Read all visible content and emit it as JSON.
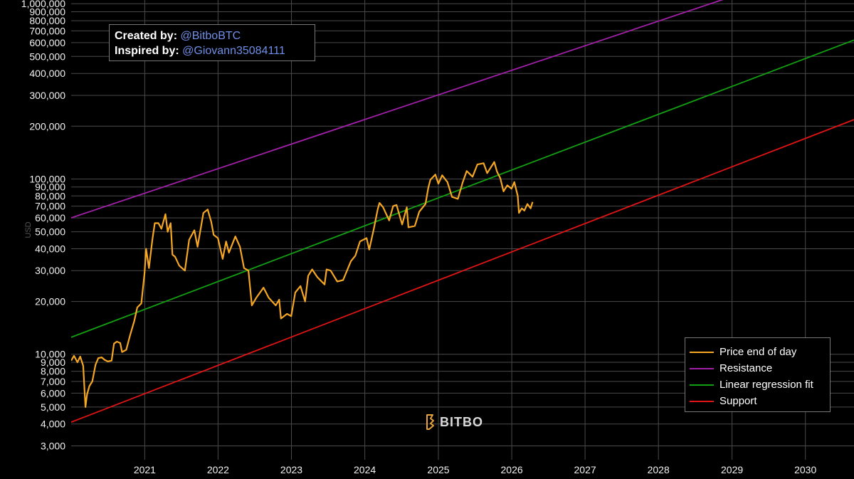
{
  "credits": {
    "created_label": "Created by:",
    "created_handle": "@BitboBTC",
    "inspired_label": "Inspired by:",
    "inspired_handle": "@Giovann35084111"
  },
  "watermark": {
    "text": "BITBO",
    "icon": "bitbo-logo-icon"
  },
  "chart_data": {
    "type": "line",
    "ylabel": "USD",
    "yscale": "log",
    "ylim": [
      2500,
      1050000
    ],
    "xlim": [
      "2020-01-01",
      "2030-08-31"
    ],
    "grid": true,
    "legend_position": "bottom-right",
    "x_ticks": [
      "2021",
      "2022",
      "2023",
      "2024",
      "2025",
      "2026",
      "2027",
      "2028",
      "2029",
      "2030"
    ],
    "y_ticks": [
      {
        "value": 3000,
        "label": "3,000"
      },
      {
        "value": 4000,
        "label": "4,000"
      },
      {
        "value": 5000,
        "label": "5,000"
      },
      {
        "value": 6000,
        "label": "6,000"
      },
      {
        "value": 7000,
        "label": "7,000"
      },
      {
        "value": 8000,
        "label": "8,000"
      },
      {
        "value": 9000,
        "label": "9,000"
      },
      {
        "value": 10000,
        "label": "10,000"
      },
      {
        "value": 20000,
        "label": "20,000"
      },
      {
        "value": 30000,
        "label": "30,000"
      },
      {
        "value": 40000,
        "label": "40,000"
      },
      {
        "value": 50000,
        "label": "50,000"
      },
      {
        "value": 60000,
        "label": "60,000"
      },
      {
        "value": 70000,
        "label": "70,000"
      },
      {
        "value": 80000,
        "label": "80,000"
      },
      {
        "value": 90000,
        "label": "90,000"
      },
      {
        "value": 100000,
        "label": "100,000"
      },
      {
        "value": 200000,
        "label": "200,000"
      },
      {
        "value": 300000,
        "label": "300,000"
      },
      {
        "value": 400000,
        "label": "400,000"
      },
      {
        "value": 500000,
        "label": "500,000"
      },
      {
        "value": 600000,
        "label": "600,000"
      },
      {
        "value": 700000,
        "label": "700,000"
      },
      {
        "value": 800000,
        "label": "800,000"
      },
      {
        "value": 900000,
        "label": "900,000"
      },
      {
        "value": 1000000,
        "label": "1,000,000"
      }
    ],
    "series": [
      {
        "name": "Price end of day",
        "color": "#f5a623",
        "points": [
          [
            "2020-01-01",
            9200
          ],
          [
            "2020-01-15",
            9800
          ],
          [
            "2020-02-01",
            9000
          ],
          [
            "2020-02-15",
            9700
          ],
          [
            "2020-03-01",
            8600
          ],
          [
            "2020-03-12",
            5000
          ],
          [
            "2020-03-20",
            5900
          ],
          [
            "2020-04-01",
            6600
          ],
          [
            "2020-04-15",
            7000
          ],
          [
            "2020-05-01",
            8700
          ],
          [
            "2020-05-15",
            9500
          ],
          [
            "2020-06-01",
            9600
          ],
          [
            "2020-06-15",
            9300
          ],
          [
            "2020-07-01",
            9100
          ],
          [
            "2020-07-20",
            9200
          ],
          [
            "2020-08-01",
            11500
          ],
          [
            "2020-08-15",
            11800
          ],
          [
            "2020-09-01",
            11600
          ],
          [
            "2020-09-10",
            10300
          ],
          [
            "2020-10-01",
            10600
          ],
          [
            "2020-10-20",
            12800
          ],
          [
            "2020-11-10",
            15500
          ],
          [
            "2020-11-25",
            18500
          ],
          [
            "2020-12-15",
            19500
          ],
          [
            "2020-12-31",
            29000
          ],
          [
            "2021-01-08",
            40000
          ],
          [
            "2021-01-22",
            31000
          ],
          [
            "2021-02-08",
            45000
          ],
          [
            "2021-02-20",
            56000
          ],
          [
            "2021-03-10",
            56000
          ],
          [
            "2021-03-25",
            52000
          ],
          [
            "2021-04-14",
            63000
          ],
          [
            "2021-04-25",
            50000
          ],
          [
            "2021-05-10",
            56000
          ],
          [
            "2021-05-19",
            37000
          ],
          [
            "2021-06-01",
            36000
          ],
          [
            "2021-06-22",
            32000
          ],
          [
            "2021-07-20",
            30000
          ],
          [
            "2021-08-10",
            45000
          ],
          [
            "2021-09-05",
            51000
          ],
          [
            "2021-09-21",
            41000
          ],
          [
            "2021-10-20",
            64000
          ],
          [
            "2021-11-10",
            67000
          ],
          [
            "2021-11-28",
            57000
          ],
          [
            "2021-12-10",
            48000
          ],
          [
            "2021-12-31",
            46000
          ],
          [
            "2022-01-24",
            35000
          ],
          [
            "2022-02-10",
            44000
          ],
          [
            "2022-02-24",
            38000
          ],
          [
            "2022-03-28",
            47000
          ],
          [
            "2022-04-20",
            41000
          ],
          [
            "2022-05-10",
            31000
          ],
          [
            "2022-06-01",
            30000
          ],
          [
            "2022-06-18",
            19000
          ],
          [
            "2022-07-10",
            21000
          ],
          [
            "2022-08-15",
            24000
          ],
          [
            "2022-09-10",
            21000
          ],
          [
            "2022-10-15",
            19000
          ],
          [
            "2022-11-01",
            20500
          ],
          [
            "2022-11-10",
            16000
          ],
          [
            "2022-12-10",
            17000
          ],
          [
            "2022-12-31",
            16500
          ],
          [
            "2023-01-20",
            22500
          ],
          [
            "2023-02-15",
            24500
          ],
          [
            "2023-03-10",
            20000
          ],
          [
            "2023-03-25",
            28000
          ],
          [
            "2023-04-14",
            30500
          ],
          [
            "2023-05-10",
            27500
          ],
          [
            "2023-06-15",
            25000
          ],
          [
            "2023-06-25",
            30500
          ],
          [
            "2023-07-15",
            30000
          ],
          [
            "2023-08-17",
            26000
          ],
          [
            "2023-09-15",
            26500
          ],
          [
            "2023-10-24",
            34000
          ],
          [
            "2023-11-15",
            36500
          ],
          [
            "2023-12-08",
            44000
          ],
          [
            "2024-01-10",
            46000
          ],
          [
            "2024-01-23",
            39500
          ],
          [
            "2024-02-15",
            52000
          ],
          [
            "2024-03-05",
            67000
          ],
          [
            "2024-03-14",
            73000
          ],
          [
            "2024-04-01",
            69000
          ],
          [
            "2024-05-01",
            58000
          ],
          [
            "2024-05-21",
            70000
          ],
          [
            "2024-06-07",
            71000
          ],
          [
            "2024-07-05",
            55000
          ],
          [
            "2024-07-28",
            69000
          ],
          [
            "2024-08-05",
            53000
          ],
          [
            "2024-09-06",
            54000
          ],
          [
            "2024-09-28",
            65000
          ],
          [
            "2024-10-29",
            72000
          ],
          [
            "2024-11-12",
            89000
          ],
          [
            "2024-11-22",
            99000
          ],
          [
            "2024-12-17",
            106000
          ],
          [
            "2025-01-01",
            94000
          ],
          [
            "2025-01-20",
            105000
          ],
          [
            "2025-02-15",
            96000
          ],
          [
            "2025-03-10",
            79000
          ],
          [
            "2025-04-08",
            77000
          ],
          [
            "2025-05-01",
            95000
          ],
          [
            "2025-05-22",
            111000
          ],
          [
            "2025-06-20",
            103000
          ],
          [
            "2025-07-14",
            121000
          ],
          [
            "2025-08-14",
            123000
          ],
          [
            "2025-09-01",
            108000
          ],
          [
            "2025-10-06",
            125000
          ],
          [
            "2025-10-20",
            110000
          ],
          [
            "2025-11-05",
            101000
          ],
          [
            "2025-11-21",
            85000
          ],
          [
            "2025-12-10",
            92000
          ],
          [
            "2025-12-31",
            88000
          ],
          [
            "2026-01-14",
            96000
          ],
          [
            "2026-01-31",
            80000
          ],
          [
            "2026-02-06",
            64000
          ],
          [
            "2026-02-20",
            68000
          ],
          [
            "2026-03-05",
            66000
          ],
          [
            "2026-03-20",
            72000
          ],
          [
            "2026-04-05",
            68000
          ],
          [
            "2026-04-15",
            74000
          ]
        ]
      },
      {
        "name": "Resistance",
        "color": "#a020a8",
        "points": [
          [
            "2020-01-01",
            60000
          ],
          [
            "2030-08-31",
            1880000
          ]
        ]
      },
      {
        "name": "Linear regression fit",
        "color": "#12a012",
        "points": [
          [
            "2020-01-01",
            12500
          ],
          [
            "2030-08-31",
            620000
          ]
        ]
      },
      {
        "name": "Support",
        "color": "#e01414",
        "points": [
          [
            "2020-01-01",
            4100
          ],
          [
            "2030-08-31",
            218000
          ]
        ]
      }
    ]
  }
}
